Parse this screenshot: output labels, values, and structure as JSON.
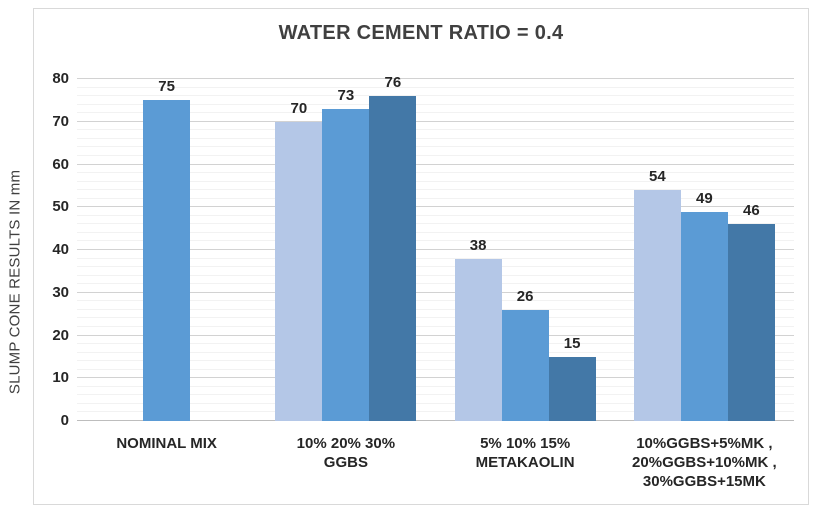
{
  "chart_data": {
    "type": "bar",
    "title": "WATER CEMENT RATIO = 0.4",
    "xlabel": "",
    "ylabel": "SLUMP CONE RESULTS IN mm",
    "ylim": [
      0,
      80
    ],
    "y_ticks": [
      0,
      10,
      20,
      30,
      40,
      50,
      60,
      70,
      80
    ],
    "minor_gridline_step": 2,
    "grid": "horizontal major gridlines every 10 with faint minor gridlines every 2",
    "legend_position": "none",
    "categories": [
      "NOMINAL MIX",
      "10% 20% 30% GGBS",
      "5% 10% 15% METAKAOLIN",
      "10%GGBS+5%MK , 20%GGBS+10%MK , 30%GGBS+15MK"
    ],
    "category_label_lines": [
      [
        "NOMINAL MIX"
      ],
      [
        "10% 20% 30%",
        "GGBS"
      ],
      [
        "5% 10% 15%",
        "METAKAOLIN"
      ],
      [
        "10%GGBS+5%MK ,",
        "20%GGBS+10%MK ,",
        "30%GGBS+15MK"
      ]
    ],
    "groups": [
      {
        "category": "NOMINAL MIX",
        "values": [
          75
        ],
        "data_labels": [
          "75"
        ],
        "color_indices": [
          1
        ]
      },
      {
        "category": "10% 20% 30% GGBS",
        "values": [
          70,
          73,
          76
        ],
        "data_labels": [
          "70",
          "73",
          "76"
        ],
        "color_indices": [
          0,
          1,
          2
        ]
      },
      {
        "category": "5% 10% 15% METAKAOLIN",
        "values": [
          38,
          26,
          15
        ],
        "data_labels": [
          "38",
          "26",
          "15"
        ],
        "color_indices": [
          0,
          1,
          2
        ]
      },
      {
        "category": "10%GGBS+5%MK , 20%GGBS+10%MK , 30%GGBS+15MK",
        "values": [
          54,
          49,
          46
        ],
        "data_labels": [
          "54",
          "49",
          "46"
        ],
        "color_indices": [
          0,
          1,
          2
        ]
      }
    ],
    "bar_palette": [
      "#B4C7E7",
      "#5B9BD5",
      "#4378A7"
    ],
    "colors": {
      "minor_grid": "#F2F2F2",
      "major_grid": "#D2D2D2",
      "axis_line": "#BDBDBD",
      "frame_border": "#D9D9D9",
      "title_text": "#404040",
      "label_text": "#262626"
    }
  }
}
